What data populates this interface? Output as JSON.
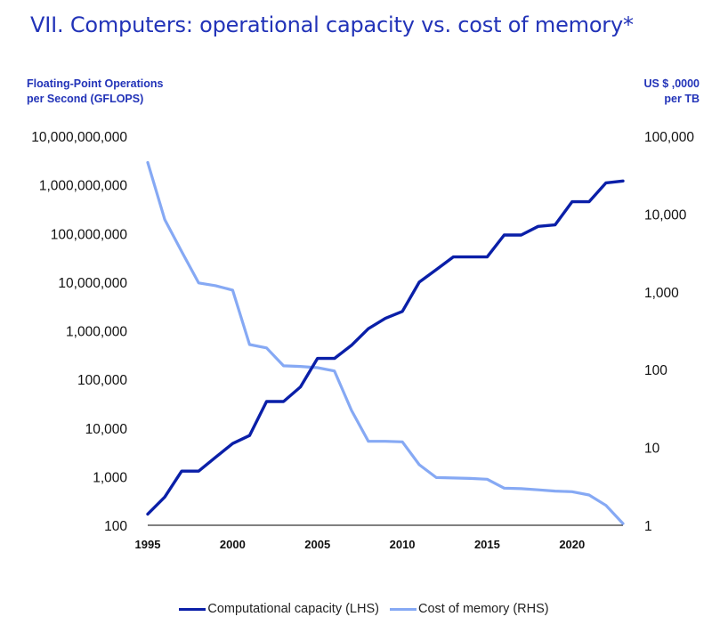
{
  "chart_data": {
    "type": "line",
    "title": "VII. Computers: operational capacity vs. cost of memory*",
    "ylabel_left": "Floating-Point Operations\nper Second (GFLOPS)",
    "ylabel_right": "US $ ,0000\nper TB",
    "x_ticks": [
      "1995",
      "2000",
      "2005",
      "2010",
      "2015",
      "2020"
    ],
    "y_left_ticks": [
      "100",
      "1,000",
      "10,000",
      "100,000",
      "1,000,000",
      "10,000,000",
      "100,000,000",
      "1,000,000,000",
      "10,000,000,000"
    ],
    "y_right_ticks": [
      "1",
      "10",
      "100",
      "1,000",
      "10,000",
      "100,000"
    ],
    "y_left_scale": "log",
    "y_left_lim": [
      100,
      10000000000
    ],
    "y_right_scale": "log",
    "y_right_lim": [
      1,
      100000
    ],
    "x_lim": [
      1995,
      2023
    ],
    "colors": {
      "title": "#2233b8",
      "capacity": "#0a1fa8",
      "memory": "#86a9f4"
    },
    "series": [
      {
        "name": "Computational capacity (LHS)",
        "axis": "left",
        "x": [
          1995,
          1996,
          1997,
          1998,
          1999,
          2000,
          2001,
          2002,
          2003,
          2004,
          2005,
          2006,
          2007,
          2008,
          2009,
          2010,
          2011,
          2012,
          2013,
          2014,
          2015,
          2016,
          2017,
          2018,
          2019,
          2020,
          2021,
          2022,
          2023
        ],
        "values": [
          170,
          380,
          1300,
          1300,
          2500,
          4800,
          7000,
          35000,
          35000,
          70000,
          270000,
          270000,
          500000,
          1100000,
          1800000,
          2500000,
          10000000,
          18000000,
          33000000,
          33000000,
          33000000,
          93000000,
          93000000,
          140000000,
          150000000,
          450000000,
          450000000,
          1100000000,
          1200000000
        ]
      },
      {
        "name": "Cost of memory (RHS)",
        "axis": "right",
        "x": [
          1995,
          1996,
          1997,
          1998,
          1999,
          2000,
          2001,
          2002,
          2003,
          2004,
          2005,
          2006,
          2007,
          2008,
          2009,
          2010,
          2011,
          2012,
          2013,
          2014,
          2015,
          2016,
          2017,
          2018,
          2019,
          2020,
          2021,
          2022,
          2023
        ],
        "values": [
          46000,
          8500,
          3300,
          1300,
          1200,
          1050,
          210,
          190,
          112,
          110,
          106,
          96,
          30,
          12,
          12,
          11.8,
          6,
          4.1,
          4.05,
          4.0,
          3.9,
          3.0,
          2.95,
          2.85,
          2.75,
          2.7,
          2.45,
          1.8,
          1.05
        ]
      }
    ],
    "legend": [
      "Computational capacity (LHS)",
      "Cost of memory (RHS)"
    ]
  }
}
